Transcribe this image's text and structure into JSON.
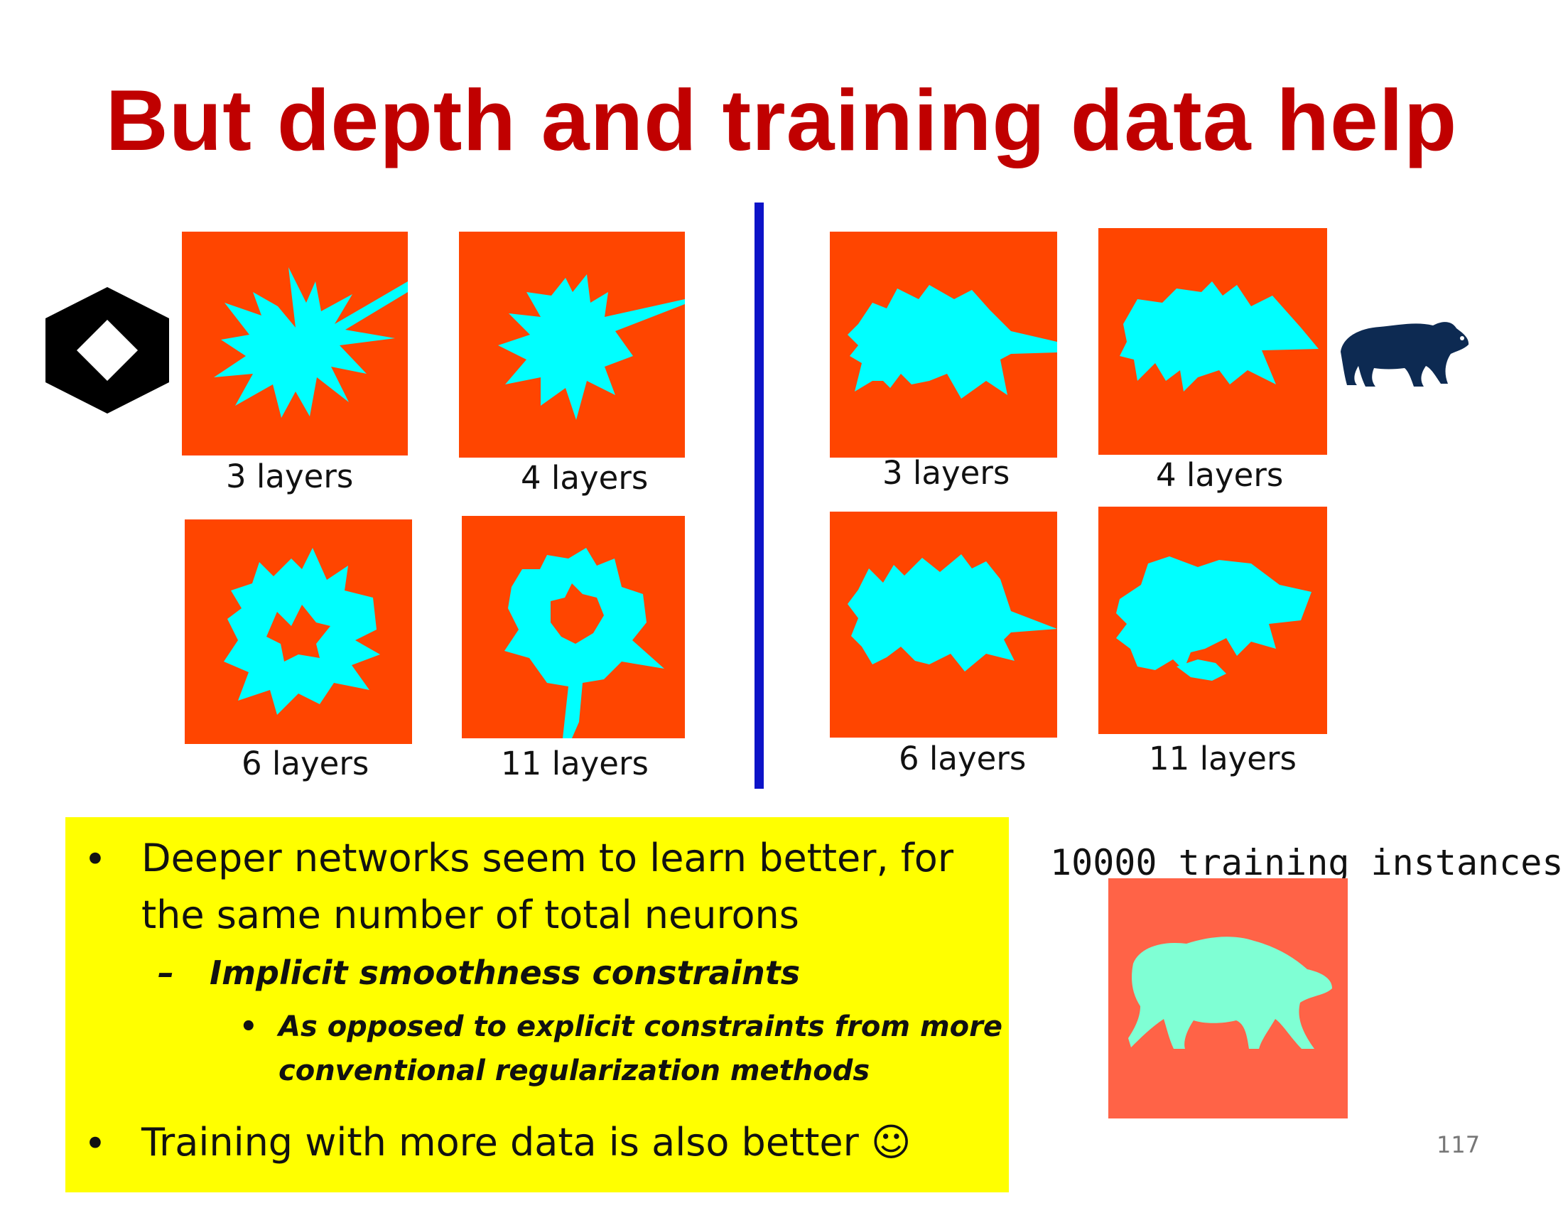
{
  "slide": {
    "title": "But depth and training data help",
    "page_number": "117"
  },
  "left_group": {
    "target_shape": "hexagon-with-diamond-hole",
    "captions": [
      "3 layers",
      "4 layers",
      "6 layers",
      "11 layers"
    ]
  },
  "right_group": {
    "target_shape": "bear-silhouette",
    "captions": [
      "3 layers",
      "4 layers",
      "6 layers",
      "11 layers"
    ]
  },
  "training_panel": {
    "label": "10000 training instances"
  },
  "bullets": {
    "b1_line1": "Deeper networks seem to learn better, for",
    "b1_line2": "the same number of total neurons",
    "dash": "–",
    "b2": "Implicit smoothness constraints",
    "b3_line1": "As opposed to explicit constraints from more",
    "b3_line2": "conventional regularization methods",
    "b4": "Training with more data is also better ☺",
    "bullet_char": "•"
  },
  "colors": {
    "title": "#c00000",
    "panel_bg": "#ff4500",
    "learned_region": "#00ffff",
    "divider": "#0c13c8",
    "highlight_box": "#ffff00",
    "bear_logo": "#0d2a52",
    "smooth_panel_bg": "#ff6347",
    "smooth_region": "#7fffd4"
  }
}
